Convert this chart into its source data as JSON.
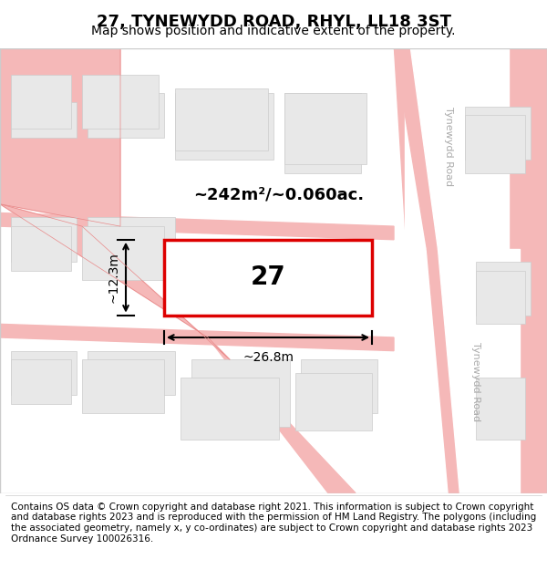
{
  "title": "27, TYNEWYDD ROAD, RHYL, LL18 3ST",
  "subtitle": "Map shows position and indicative extent of the property.",
  "footer": "Contains OS data © Crown copyright and database right 2021. This information is subject to Crown copyright and database rights 2023 and is reproduced with the permission of HM Land Registry. The polygons (including the associated geometry, namely x, y co-ordinates) are subject to Crown copyright and database rights 2023 Ordnance Survey 100026316.",
  "area_label": "~242m²/~0.060ac.",
  "width_label": "~26.8m",
  "height_label": "~12.3m",
  "house_number": "27",
  "map_bg": "#f5f5f5",
  "road_color": "#f5b8b8",
  "road_line_color": "#e88888",
  "building_fill": "#e8e8e8",
  "building_edge": "#cccccc",
  "highlight_fill": "#ffffff",
  "highlight_edge": "#dd0000",
  "road_label_color": "#aaaaaa",
  "street_label": "Tynewydd Road",
  "title_fontsize": 13,
  "subtitle_fontsize": 10,
  "footer_fontsize": 7.5
}
